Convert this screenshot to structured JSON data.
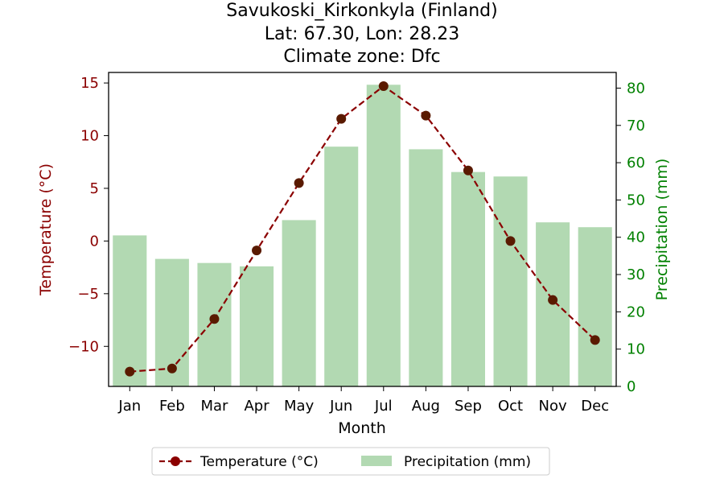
{
  "chart_data": {
    "type": "bar",
    "title_lines": [
      "Savukoski_Kirkonkyla (Finland)",
      "Lat: 67.30, Lon: 28.23",
      "Climate zone: Dfc"
    ],
    "xlabel": "Month",
    "categories": [
      "Jan",
      "Feb",
      "Mar",
      "Apr",
      "May",
      "Jun",
      "Jul",
      "Aug",
      "Sep",
      "Oct",
      "Nov",
      "Dec"
    ],
    "y_left": {
      "label": "Temperature (°C)",
      "ticks": [
        -10,
        -5,
        0,
        5,
        10,
        15
      ],
      "tick_labels": [
        "−10",
        "−5",
        "0",
        "5",
        "10",
        "15"
      ],
      "ylim": [
        -13.8,
        16.0
      ],
      "color": "#8b0000"
    },
    "y_right": {
      "label": "Precipitation (mm)",
      "ticks": [
        0,
        10,
        20,
        30,
        40,
        50,
        60,
        70,
        80
      ],
      "tick_labels": [
        "0",
        "10",
        "20",
        "30",
        "40",
        "50",
        "60",
        "70",
        "80"
      ],
      "ylim": [
        0,
        84.2
      ],
      "color": "#008000"
    },
    "series": [
      {
        "name": "Temperature (°C)",
        "kind": "line",
        "axis": "left",
        "color": "#8b0000",
        "marker_color": "#5a1a00",
        "linestyle": "dashed",
        "values": [
          -12.4,
          -12.1,
          -7.4,
          -0.9,
          5.5,
          11.6,
          14.7,
          11.9,
          6.7,
          0.0,
          -5.6,
          -9.4
        ]
      },
      {
        "name": "Precipitation (mm)",
        "kind": "bar",
        "axis": "right",
        "color": "#b2d9b2",
        "values": [
          40.5,
          34.2,
          33.1,
          32.2,
          44.6,
          64.3,
          80.9,
          63.6,
          57.5,
          56.3,
          44.0,
          42.7
        ]
      }
    ],
    "legend": {
      "placement": "bottom-center",
      "entries": [
        "Temperature (°C)",
        "Precipitation (mm)"
      ]
    },
    "grid": false
  }
}
